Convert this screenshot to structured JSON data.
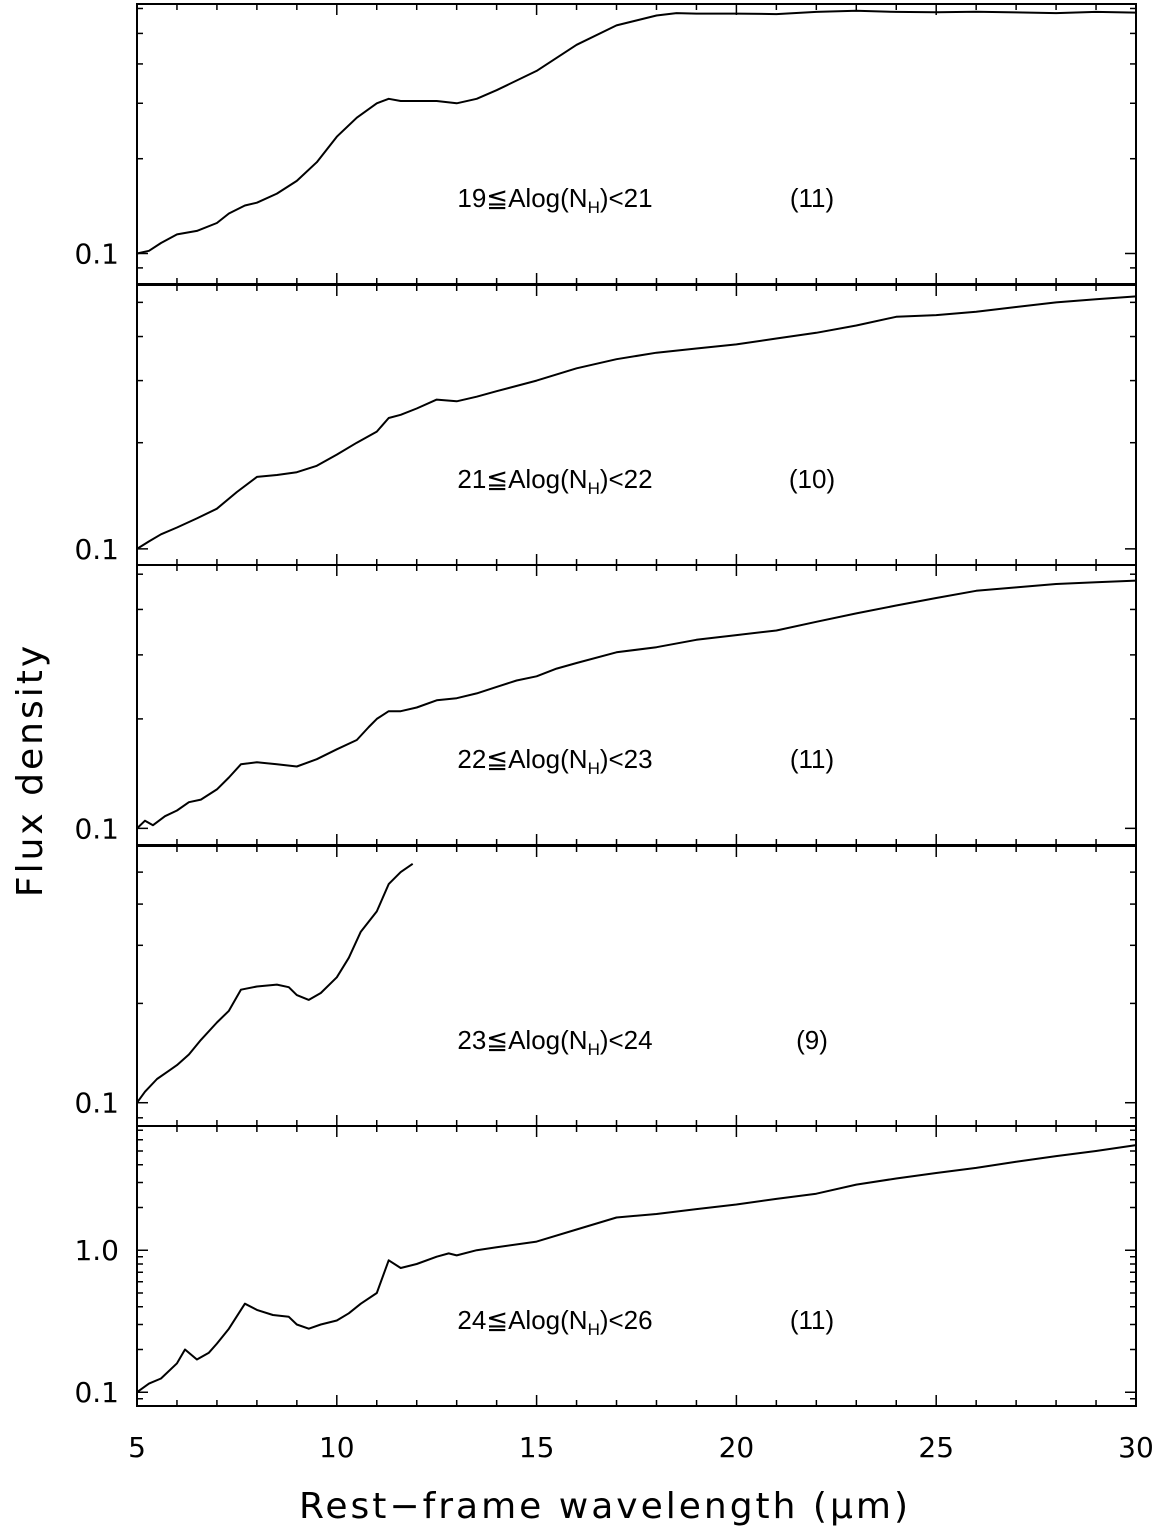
{
  "chart_data": {
    "type": "line",
    "xlabel": "Rest−frame wavelength (μm)",
    "ylabel": "Flux density",
    "xlim": [
      5,
      30
    ],
    "x_ticks": [
      5,
      10,
      15,
      20,
      25,
      30
    ],
    "x_tick_labels": [
      "5",
      "10",
      "15",
      "20",
      "25",
      "30"
    ],
    "panels": [
      {
        "label": "19≦Alog(N",
        "label_sub": "H",
        "label_tail": ")<21",
        "count": "(11)",
        "yscale": "log",
        "ylim": [
          0.08,
          0.62
        ],
        "y_tick_labels": [
          {
            "value": 0.1,
            "label": "0.1"
          }
        ],
        "x": [
          5,
          5.3,
          5.6,
          6,
          6.5,
          7,
          7.3,
          7.7,
          8,
          8.5,
          9,
          9.5,
          10,
          10.5,
          11,
          11.3,
          11.6,
          12,
          12.5,
          13,
          13.5,
          14,
          15,
          16,
          17,
          18,
          18.5,
          19,
          20,
          21,
          22,
          23,
          24,
          25,
          26,
          27,
          28,
          29,
          30
        ],
        "y": [
          0.1,
          0.102,
          0.108,
          0.115,
          0.118,
          0.125,
          0.134,
          0.142,
          0.145,
          0.155,
          0.17,
          0.195,
          0.235,
          0.27,
          0.3,
          0.31,
          0.305,
          0.305,
          0.305,
          0.3,
          0.31,
          0.33,
          0.38,
          0.46,
          0.53,
          0.57,
          0.58,
          0.578,
          0.578,
          0.576,
          0.585,
          0.59,
          0.585,
          0.584,
          0.586,
          0.583,
          0.58,
          0.585,
          0.582
        ]
      },
      {
        "label": "21≦Alog(N",
        "label_sub": "H",
        "label_tail": ")<22",
        "count": "(10)",
        "yscale": "log",
        "ylim": [
          0.09,
          0.56
        ],
        "y_tick_labels": [
          {
            "value": 0.1,
            "label": "0.1"
          }
        ],
        "x": [
          5,
          5.3,
          5.6,
          6,
          6.5,
          7,
          7.5,
          8,
          8.5,
          9,
          9.5,
          10,
          10.5,
          11,
          11.3,
          11.6,
          12,
          12.5,
          13,
          13.5,
          14,
          15,
          16,
          17,
          18,
          19,
          20,
          21,
          22,
          23,
          24,
          25,
          26,
          27,
          28,
          29,
          30
        ],
        "y": [
          0.1,
          0.105,
          0.11,
          0.115,
          0.122,
          0.13,
          0.145,
          0.16,
          0.162,
          0.165,
          0.172,
          0.185,
          0.2,
          0.215,
          0.235,
          0.24,
          0.25,
          0.265,
          0.262,
          0.27,
          0.28,
          0.3,
          0.325,
          0.345,
          0.36,
          0.37,
          0.38,
          0.395,
          0.41,
          0.43,
          0.455,
          0.46,
          0.47,
          0.485,
          0.5,
          0.51,
          0.52
        ]
      },
      {
        "label": "22≦Alog(N",
        "label_sub": "H",
        "label_tail": ")<23",
        "count": "(11)",
        "yscale": "log",
        "ylim": [
          0.09,
          0.53
        ],
        "y_tick_labels": [
          {
            "value": 0.1,
            "label": "0.1"
          }
        ],
        "x": [
          5,
          5.2,
          5.4,
          5.7,
          6,
          6.3,
          6.6,
          7,
          7.3,
          7.6,
          8,
          8.5,
          9,
          9.5,
          10,
          10.5,
          10.8,
          11,
          11.3,
          11.6,
          12,
          12.5,
          13,
          13.5,
          14,
          14.5,
          15,
          15.5,
          16,
          17,
          18,
          19,
          20,
          21,
          22,
          23,
          24,
          25,
          26,
          27,
          28,
          29,
          30
        ],
        "y": [
          0.1,
          0.105,
          0.102,
          0.108,
          0.112,
          0.118,
          0.12,
          0.128,
          0.138,
          0.15,
          0.152,
          0.15,
          0.148,
          0.155,
          0.165,
          0.175,
          0.19,
          0.2,
          0.21,
          0.21,
          0.215,
          0.225,
          0.228,
          0.235,
          0.245,
          0.255,
          0.262,
          0.275,
          0.285,
          0.305,
          0.315,
          0.33,
          0.34,
          0.35,
          0.37,
          0.39,
          0.41,
          0.43,
          0.45,
          0.46,
          0.47,
          0.475,
          0.48
        ]
      },
      {
        "label": "23≦Alog(N",
        "label_sub": "H",
        "label_tail": ")<24",
        "count": "(9)",
        "yscale": "log",
        "ylim": [
          0.085,
          0.6
        ],
        "y_tick_labels": [
          {
            "value": 0.1,
            "label": "0.1"
          }
        ],
        "x": [
          5,
          5.2,
          5.5,
          5.8,
          6,
          6.3,
          6.6,
          7,
          7.3,
          7.6,
          8,
          8.5,
          8.8,
          9,
          9.3,
          9.6,
          10,
          10.3,
          10.6,
          11,
          11.3,
          11.6,
          11.9
        ],
        "y": [
          0.1,
          0.108,
          0.118,
          0.125,
          0.13,
          0.14,
          0.155,
          0.175,
          0.19,
          0.22,
          0.225,
          0.228,
          0.224,
          0.212,
          0.205,
          0.215,
          0.24,
          0.275,
          0.33,
          0.38,
          0.46,
          0.5,
          0.53
        ]
      },
      {
        "label": "24≦Alog(N",
        "label_sub": "H",
        "label_tail": ")<26",
        "count": "(11)",
        "yscale": "log",
        "ylim": [
          0.08,
          7.5
        ],
        "y_tick_labels": [
          {
            "value": 0.1,
            "label": "0.1"
          },
          {
            "value": 1.0,
            "label": "1.0"
          }
        ],
        "x": [
          5,
          5.3,
          5.6,
          6,
          6.2,
          6.5,
          6.8,
          7,
          7.3,
          7.7,
          8,
          8.4,
          8.8,
          9,
          9.3,
          9.6,
          10,
          10.3,
          10.6,
          11,
          11.3,
          11.6,
          12,
          12.5,
          12.8,
          13,
          13.5,
          14,
          15,
          16,
          17,
          18,
          19,
          20,
          21,
          22,
          23,
          24,
          25,
          26,
          27,
          28,
          29,
          30
        ],
        "y": [
          0.1,
          0.115,
          0.125,
          0.16,
          0.2,
          0.17,
          0.19,
          0.22,
          0.28,
          0.42,
          0.38,
          0.35,
          0.34,
          0.3,
          0.28,
          0.3,
          0.32,
          0.36,
          0.42,
          0.5,
          0.85,
          0.75,
          0.8,
          0.9,
          0.95,
          0.92,
          1.0,
          1.05,
          1.15,
          1.4,
          1.7,
          1.8,
          1.95,
          2.1,
          2.3,
          2.5,
          2.9,
          3.2,
          3.5,
          3.8,
          4.2,
          4.6,
          5.0,
          5.5
        ]
      }
    ]
  }
}
